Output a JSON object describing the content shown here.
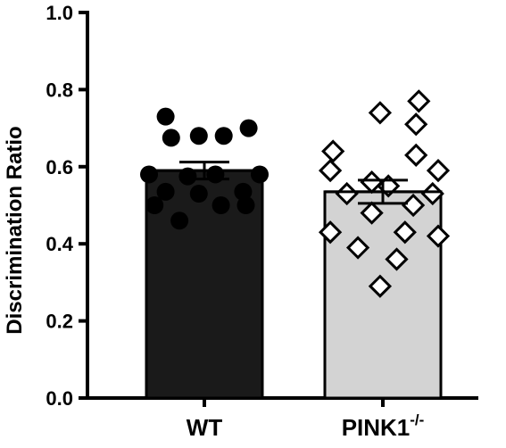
{
  "chart_data": {
    "type": "bar",
    "title": "",
    "xlabel": "",
    "ylabel": "Discrimination Ratio",
    "ylim": [
      0,
      1.0
    ],
    "yticks": [
      "0.0",
      "0.2",
      "0.4",
      "0.6",
      "0.8",
      "1.0"
    ],
    "ytick_values": [
      0,
      0.2,
      0.4,
      0.6,
      0.8,
      1.0
    ],
    "grid": false,
    "categories": [
      {
        "label": "WT",
        "sup": ""
      },
      {
        "label": "PINK1",
        "sup": "-/-"
      }
    ],
    "bars": [
      {
        "category": "WT",
        "mean": 0.59,
        "sem": 0.022,
        "fill": "#1a1a1a",
        "marker": "filled-circle",
        "points": [
          {
            "x": -0.7,
            "y": 0.73
          },
          {
            "x": 0.8,
            "y": 0.7
          },
          {
            "x": -0.1,
            "y": 0.68
          },
          {
            "x": -0.6,
            "y": 0.675
          },
          {
            "x": 0.35,
            "y": 0.68
          },
          {
            "x": 1.0,
            "y": 0.58
          },
          {
            "x": -1.0,
            "y": 0.58
          },
          {
            "x": -0.3,
            "y": 0.575
          },
          {
            "x": 0.2,
            "y": 0.58
          },
          {
            "x": -0.7,
            "y": 0.535
          },
          {
            "x": 0.7,
            "y": 0.535
          },
          {
            "x": -0.1,
            "y": 0.53
          },
          {
            "x": 0.3,
            "y": 0.5
          },
          {
            "x": 0.75,
            "y": 0.5
          },
          {
            "x": -0.9,
            "y": 0.5
          },
          {
            "x": -0.45,
            "y": 0.46
          }
        ]
      },
      {
        "category": "PINK1-/-",
        "mean": 0.535,
        "sem": 0.03,
        "fill": "#d3d3d3",
        "marker": "open-diamond",
        "points": [
          {
            "x": 0.65,
            "y": 0.77
          },
          {
            "x": -0.05,
            "y": 0.74
          },
          {
            "x": 0.6,
            "y": 0.71
          },
          {
            "x": -0.9,
            "y": 0.64
          },
          {
            "x": 0.6,
            "y": 0.63
          },
          {
            "x": -0.95,
            "y": 0.59
          },
          {
            "x": 1.0,
            "y": 0.59
          },
          {
            "x": -0.2,
            "y": 0.56
          },
          {
            "x": 0.1,
            "y": 0.55
          },
          {
            "x": -0.65,
            "y": 0.53
          },
          {
            "x": 0.9,
            "y": 0.53
          },
          {
            "x": 0.55,
            "y": 0.5
          },
          {
            "x": -0.2,
            "y": 0.48
          },
          {
            "x": -0.95,
            "y": 0.43
          },
          {
            "x": 0.4,
            "y": 0.43
          },
          {
            "x": 1.0,
            "y": 0.42
          },
          {
            "x": -0.45,
            "y": 0.39
          },
          {
            "x": 0.25,
            "y": 0.36
          },
          {
            "x": -0.05,
            "y": 0.29
          }
        ]
      }
    ]
  }
}
